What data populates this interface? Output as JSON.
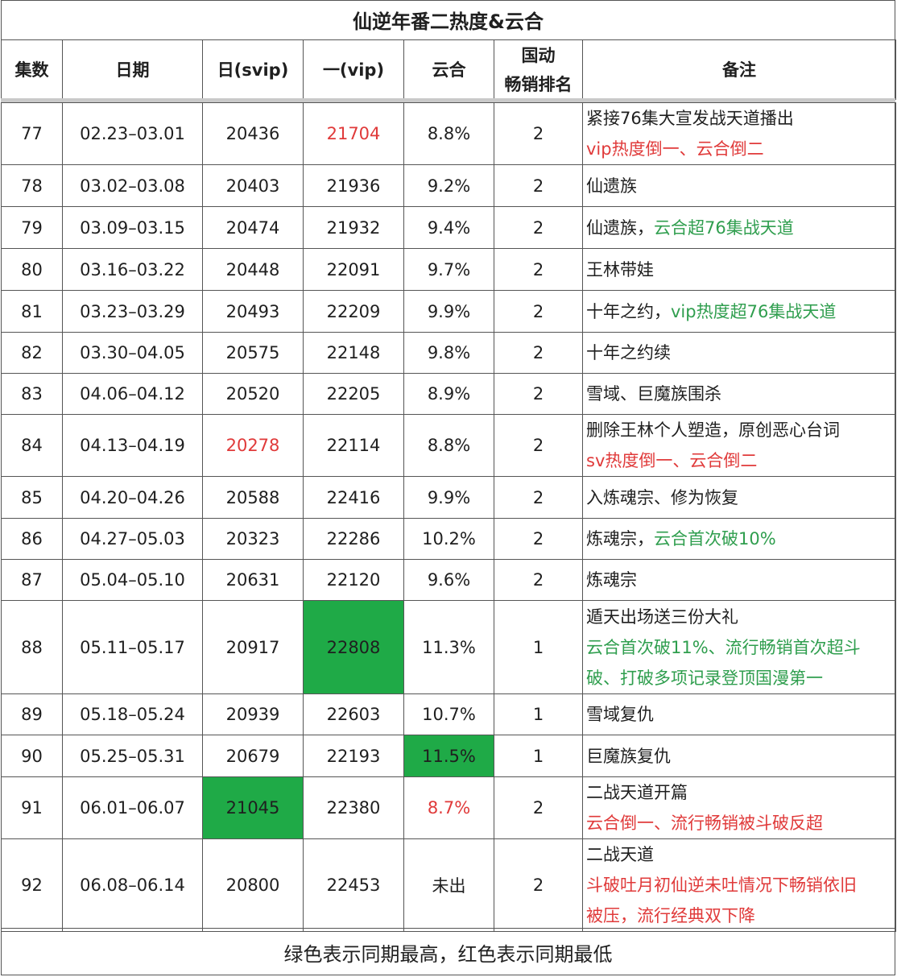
{
  "title": "仙逆年番二热度&云合",
  "headers": {
    "episode": "集数",
    "date": "日期",
    "svip": "日(svip)",
    "vip": "一(vip)",
    "yunhe": "云合",
    "rank_line1": "国动",
    "rank_line2": "畅销排名",
    "note": "备注"
  },
  "rows": [
    {
      "ep": "77",
      "date": "02.23–03.01",
      "svip": "20436",
      "vip": "21704",
      "yunhe": "8.8%",
      "rank": "2",
      "notes": [
        [
          {
            "t": "紧接76集大宣发战天道播出",
            "c": ""
          }
        ],
        [
          {
            "t": "vip热度倒一、云合倒二",
            "c": "red"
          }
        ]
      ]
    },
    {
      "ep": "78",
      "date": "03.02–03.08",
      "svip": "20403",
      "vip": "21936",
      "yunhe": "9.2%",
      "rank": "2",
      "notes": [
        [
          {
            "t": "仙遗族",
            "c": ""
          }
        ]
      ]
    },
    {
      "ep": "79",
      "date": "03.09–03.15",
      "svip": "20474",
      "vip": "21932",
      "yunhe": "9.4%",
      "rank": "2",
      "notes": [
        [
          {
            "t": "仙遗族，",
            "c": ""
          },
          {
            "t": "云合超76集战天道",
            "c": "green"
          }
        ]
      ]
    },
    {
      "ep": "80",
      "date": "03.16–03.22",
      "svip": "20448",
      "vip": "22091",
      "yunhe": "9.7%",
      "rank": "2",
      "notes": [
        [
          {
            "t": "王林带娃",
            "c": ""
          }
        ]
      ]
    },
    {
      "ep": "81",
      "date": "03.23–03.29",
      "svip": "20493",
      "vip": "22209",
      "yunhe": "9.9%",
      "rank": "2",
      "notes": [
        [
          {
            "t": "十年之约，",
            "c": ""
          },
          {
            "t": "vip热度超76集战天道",
            "c": "green"
          }
        ]
      ]
    },
    {
      "ep": "82",
      "date": "03.30–04.05",
      "svip": "20575",
      "vip": "22148",
      "yunhe": "9.8%",
      "rank": "2",
      "notes": [
        [
          {
            "t": "十年之约续",
            "c": ""
          }
        ]
      ]
    },
    {
      "ep": "83",
      "date": "04.06–04.12",
      "svip": "20520",
      "vip": "22205",
      "yunhe": "8.9%",
      "rank": "2",
      "notes": [
        [
          {
            "t": "雪域、巨魔族围杀",
            "c": ""
          }
        ]
      ]
    },
    {
      "ep": "84",
      "date": "04.13–04.19",
      "svip": "20278",
      "vip": "22114",
      "yunhe": "8.8%",
      "rank": "2",
      "notes": [
        [
          {
            "t": "删除王林个人塑造，原创恶心台词",
            "c": ""
          }
        ],
        [
          {
            "t": "sv热度倒一、云合倒二",
            "c": "red"
          }
        ]
      ]
    },
    {
      "ep": "85",
      "date": "04.20–04.26",
      "svip": "20588",
      "vip": "22416",
      "yunhe": "9.9%",
      "rank": "2",
      "notes": [
        [
          {
            "t": "入炼魂宗、修为恢复",
            "c": ""
          }
        ]
      ]
    },
    {
      "ep": "86",
      "date": "04.27–05.03",
      "svip": "20323",
      "vip": "22286",
      "yunhe": "10.2%",
      "rank": "2",
      "notes": [
        [
          {
            "t": "炼魂宗，",
            "c": ""
          },
          {
            "t": "云合首次破10%",
            "c": "green"
          }
        ]
      ]
    },
    {
      "ep": "87",
      "date": "05.04–05.10",
      "svip": "20631",
      "vip": "22120",
      "yunhe": "9.6%",
      "rank": "2",
      "notes": [
        [
          {
            "t": "炼魂宗",
            "c": ""
          }
        ]
      ]
    },
    {
      "ep": "88",
      "date": "05.11–05.17",
      "svip": "20917",
      "vip": "22808",
      "yunhe": "11.3%",
      "rank": "1",
      "notes": [
        [
          {
            "t": "遁天出场送三份大礼",
            "c": ""
          }
        ],
        [
          {
            "t": "云合首次破11%、流行畅销首次超斗",
            "c": "green"
          }
        ],
        [
          {
            "t": "破、打破多项记录登顶国漫第一",
            "c": "green"
          }
        ]
      ]
    },
    {
      "ep": "89",
      "date": "05.18–05.24",
      "svip": "20939",
      "vip": "22603",
      "yunhe": "10.7%",
      "rank": "1",
      "notes": [
        [
          {
            "t": "雪域复仇",
            "c": ""
          }
        ]
      ]
    },
    {
      "ep": "90",
      "date": "05.25–05.31",
      "svip": "20679",
      "vip": "22193",
      "yunhe": "11.5%",
      "rank": "1",
      "notes": [
        [
          {
            "t": "巨魔族复仇",
            "c": ""
          }
        ]
      ]
    },
    {
      "ep": "91",
      "date": "06.01–06.07",
      "svip": "21045",
      "vip": "22380",
      "yunhe": "8.7%",
      "rank": "2",
      "notes": [
        [
          {
            "t": "二战天道开篇",
            "c": ""
          }
        ],
        [
          {
            "t": "云合倒一、流行畅销被斗破反超",
            "c": "red"
          }
        ]
      ]
    },
    {
      "ep": "92",
      "date": "06.08–06.14",
      "svip": "20800",
      "vip": "22453",
      "yunhe": "未出",
      "rank": "2",
      "notes": [
        [
          {
            "t": "二战天道",
            "c": ""
          }
        ],
        [
          {
            "t": "斗破吐月初仙逆未吐情况下畅销依旧",
            "c": "red"
          }
        ],
        [
          {
            "t": "被压，流行经典双下降",
            "c": "red"
          }
        ]
      ]
    }
  ],
  "highlights": {
    "red_text": [
      "77.vip",
      "84.svip",
      "91.yunhe"
    ],
    "green_fill": [
      "88.vip",
      "90.yunhe",
      "91.svip"
    ],
    "colors": {
      "red": "#e03a3a",
      "green_text": "#2f9e4e",
      "green_fill": "#1faa47"
    }
  },
  "footer": "绿色表示同期最高，红色表示同期最低"
}
